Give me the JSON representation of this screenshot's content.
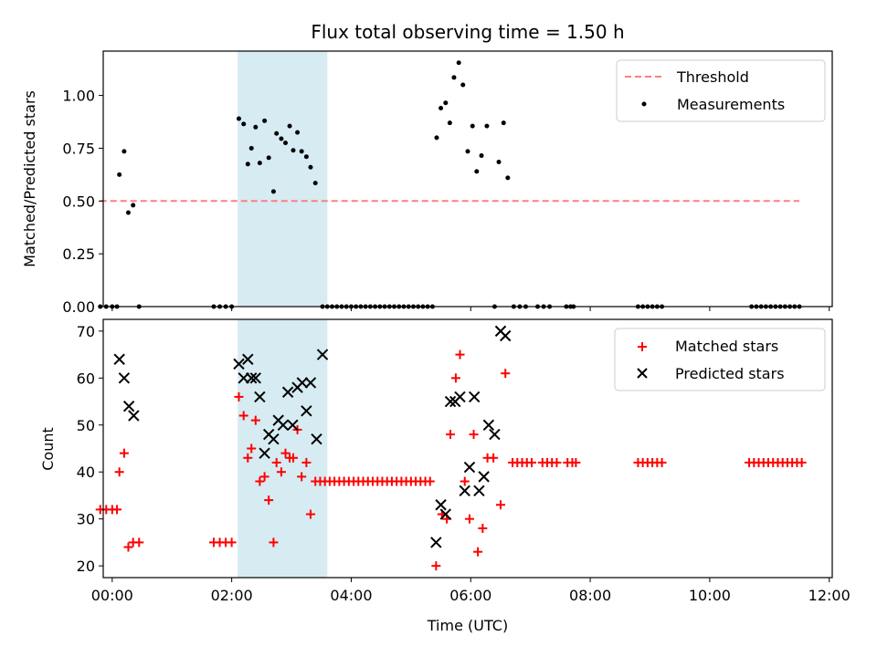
{
  "chart_data": [
    {
      "type": "scatter",
      "title": "Flux total observing time = 1.50 h",
      "xlabel": "",
      "ylabel": "Matched/Predicted stars",
      "xlim": [
        -0.15,
        12.05
      ],
      "ylim": [
        0,
        1.21
      ],
      "yticks": [
        0.0,
        0.25,
        0.5,
        0.75,
        1.0
      ],
      "ytick_labels": [
        "0.00",
        "0.25",
        "0.50",
        "0.75",
        "1.00"
      ],
      "xticks": [
        0,
        2,
        4,
        6,
        8,
        10,
        12
      ],
      "shaded_span": [
        2.1,
        3.6
      ],
      "shade_color": "#add8e6",
      "legend_position": "top-right",
      "threshold": {
        "name": "Threshold",
        "value": 0.5,
        "x_range": [
          -0.2,
          11.5
        ],
        "color": "#ff7f7f"
      },
      "series": [
        {
          "name": "Measurements",
          "marker": "dot",
          "color": "#000000",
          "points": [
            [
              -0.2,
              0.0
            ],
            [
              -0.1,
              0.0
            ],
            [
              0.0,
              0.0
            ],
            [
              0.08,
              0.0
            ],
            [
              0.12,
              0.625
            ],
            [
              0.2,
              0.735
            ],
            [
              0.27,
              0.445
            ],
            [
              0.35,
              0.48
            ],
            [
              0.45,
              0.0
            ],
            [
              1.7,
              0.0
            ],
            [
              1.8,
              0.0
            ],
            [
              1.9,
              0.0
            ],
            [
              2.0,
              0.0
            ],
            [
              2.12,
              0.89
            ],
            [
              2.2,
              0.865
            ],
            [
              2.27,
              0.675
            ],
            [
              2.33,
              0.75
            ],
            [
              2.4,
              0.85
            ],
            [
              2.47,
              0.68
            ],
            [
              2.55,
              0.88
            ],
            [
              2.62,
              0.705
            ],
            [
              2.7,
              0.545
            ],
            [
              2.75,
              0.82
            ],
            [
              2.83,
              0.795
            ],
            [
              2.9,
              0.775
            ],
            [
              2.97,
              0.855
            ],
            [
              3.03,
              0.74
            ],
            [
              3.1,
              0.825
            ],
            [
              3.17,
              0.735
            ],
            [
              3.25,
              0.71
            ],
            [
              3.32,
              0.66
            ],
            [
              3.4,
              0.585
            ],
            [
              3.52,
              0.0
            ],
            [
              3.6,
              0.0
            ],
            [
              3.68,
              0.0
            ],
            [
              3.76,
              0.0
            ],
            [
              3.84,
              0.0
            ],
            [
              3.92,
              0.0
            ],
            [
              4.0,
              0.0
            ],
            [
              4.08,
              0.0
            ],
            [
              4.16,
              0.0
            ],
            [
              4.24,
              0.0
            ],
            [
              4.32,
              0.0
            ],
            [
              4.4,
              0.0
            ],
            [
              4.48,
              0.0
            ],
            [
              4.56,
              0.0
            ],
            [
              4.64,
              0.0
            ],
            [
              4.72,
              0.0
            ],
            [
              4.8,
              0.0
            ],
            [
              4.88,
              0.0
            ],
            [
              4.96,
              0.0
            ],
            [
              5.04,
              0.0
            ],
            [
              5.12,
              0.0
            ],
            [
              5.2,
              0.0
            ],
            [
              5.28,
              0.0
            ],
            [
              5.36,
              0.0
            ],
            [
              5.43,
              0.8
            ],
            [
              5.5,
              0.94
            ],
            [
              5.58,
              0.965
            ],
            [
              5.65,
              0.87
            ],
            [
              5.72,
              1.085
            ],
            [
              5.8,
              1.155
            ],
            [
              5.87,
              1.05
            ],
            [
              5.95,
              0.735
            ],
            [
              6.03,
              0.855
            ],
            [
              6.1,
              0.64
            ],
            [
              6.18,
              0.715
            ],
            [
              6.27,
              0.855
            ],
            [
              6.4,
              0.0
            ],
            [
              6.47,
              0.685
            ],
            [
              6.55,
              0.87
            ],
            [
              6.62,
              0.61
            ],
            [
              6.72,
              0.0
            ],
            [
              6.82,
              0.0
            ],
            [
              6.92,
              0.0
            ],
            [
              7.12,
              0.0
            ],
            [
              7.22,
              0.0
            ],
            [
              7.32,
              0.0
            ],
            [
              7.6,
              0.0
            ],
            [
              7.67,
              0.0
            ],
            [
              7.72,
              0.0
            ],
            [
              8.8,
              0.0
            ],
            [
              8.88,
              0.0
            ],
            [
              8.96,
              0.0
            ],
            [
              9.04,
              0.0
            ],
            [
              9.12,
              0.0
            ],
            [
              9.2,
              0.0
            ],
            [
              10.7,
              0.0
            ],
            [
              10.78,
              0.0
            ],
            [
              10.86,
              0.0
            ],
            [
              10.94,
              0.0
            ],
            [
              11.02,
              0.0
            ],
            [
              11.1,
              0.0
            ],
            [
              11.18,
              0.0
            ],
            [
              11.26,
              0.0
            ],
            [
              11.34,
              0.0
            ],
            [
              11.42,
              0.0
            ],
            [
              11.5,
              0.0
            ]
          ]
        }
      ]
    },
    {
      "type": "scatter",
      "title": "",
      "xlabel": "Time (UTC)",
      "ylabel": "Count",
      "xlim": [
        -0.15,
        12.05
      ],
      "ylim": [
        17.5,
        72.5
      ],
      "yticks": [
        20,
        30,
        40,
        50,
        60,
        70
      ],
      "ytick_labels": [
        "20",
        "30",
        "40",
        "50",
        "60",
        "70"
      ],
      "xticks": [
        0,
        2,
        4,
        6,
        8,
        10,
        12
      ],
      "xtick_labels": [
        "00:00",
        "02:00",
        "04:00",
        "06:00",
        "08:00",
        "10:00",
        "12:00"
      ],
      "shaded_span": [
        2.1,
        3.6
      ],
      "shade_color": "#add8e6",
      "legend_position": "top-right",
      "series": [
        {
          "name": "Matched stars",
          "marker": "plus",
          "color": "#ff0000",
          "points": [
            [
              -0.2,
              32
            ],
            [
              -0.1,
              32
            ],
            [
              0.0,
              32
            ],
            [
              0.08,
              32
            ],
            [
              0.12,
              40
            ],
            [
              0.2,
              44
            ],
            [
              0.27,
              24
            ],
            [
              0.35,
              25
            ],
            [
              0.45,
              25
            ],
            [
              1.7,
              25
            ],
            [
              1.8,
              25
            ],
            [
              1.9,
              25
            ],
            [
              2.0,
              25
            ],
            [
              2.12,
              56
            ],
            [
              2.2,
              52
            ],
            [
              2.27,
              43
            ],
            [
              2.33,
              45
            ],
            [
              2.4,
              51
            ],
            [
              2.47,
              38
            ],
            [
              2.55,
              39
            ],
            [
              2.62,
              34
            ],
            [
              2.7,
              25
            ],
            [
              2.75,
              42
            ],
            [
              2.83,
              40
            ],
            [
              2.9,
              44
            ],
            [
              2.97,
              43
            ],
            [
              3.03,
              43
            ],
            [
              3.1,
              49
            ],
            [
              3.17,
              39
            ],
            [
              3.25,
              42
            ],
            [
              3.32,
              31
            ],
            [
              3.4,
              38
            ],
            [
              3.48,
              38
            ],
            [
              3.56,
              38
            ],
            [
              3.64,
              38
            ],
            [
              3.72,
              38
            ],
            [
              3.8,
              38
            ],
            [
              3.88,
              38
            ],
            [
              3.96,
              38
            ],
            [
              4.04,
              38
            ],
            [
              4.12,
              38
            ],
            [
              4.2,
              38
            ],
            [
              4.28,
              38
            ],
            [
              4.36,
              38
            ],
            [
              4.44,
              38
            ],
            [
              4.52,
              38
            ],
            [
              4.6,
              38
            ],
            [
              4.68,
              38
            ],
            [
              4.76,
              38
            ],
            [
              4.84,
              38
            ],
            [
              4.92,
              38
            ],
            [
              5.0,
              38
            ],
            [
              5.08,
              38
            ],
            [
              5.16,
              38
            ],
            [
              5.24,
              38
            ],
            [
              5.32,
              38
            ],
            [
              5.42,
              20
            ],
            [
              5.52,
              31
            ],
            [
              5.6,
              30
            ],
            [
              5.66,
              48
            ],
            [
              5.75,
              60
            ],
            [
              5.82,
              65
            ],
            [
              5.9,
              38
            ],
            [
              5.98,
              30
            ],
            [
              6.05,
              48
            ],
            [
              6.12,
              23
            ],
            [
              6.2,
              28
            ],
            [
              6.28,
              43
            ],
            [
              6.38,
              43
            ],
            [
              6.5,
              33
            ],
            [
              6.58,
              61
            ],
            [
              6.7,
              42
            ],
            [
              6.78,
              42
            ],
            [
              6.86,
              42
            ],
            [
              6.94,
              42
            ],
            [
              7.02,
              42
            ],
            [
              7.2,
              42
            ],
            [
              7.28,
              42
            ],
            [
              7.36,
              42
            ],
            [
              7.44,
              42
            ],
            [
              7.62,
              42
            ],
            [
              7.7,
              42
            ],
            [
              7.76,
              42
            ],
            [
              8.8,
              42
            ],
            [
              8.88,
              42
            ],
            [
              8.96,
              42
            ],
            [
              9.04,
              42
            ],
            [
              9.12,
              42
            ],
            [
              9.2,
              42
            ],
            [
              10.66,
              42
            ],
            [
              10.74,
              42
            ],
            [
              10.82,
              42
            ],
            [
              10.9,
              42
            ],
            [
              10.98,
              42
            ],
            [
              11.06,
              42
            ],
            [
              11.14,
              42
            ],
            [
              11.22,
              42
            ],
            [
              11.3,
              42
            ],
            [
              11.38,
              42
            ],
            [
              11.46,
              42
            ],
            [
              11.54,
              42
            ]
          ]
        },
        {
          "name": "Predicted stars",
          "marker": "x",
          "color": "#000000",
          "points": [
            [
              0.12,
              64
            ],
            [
              0.2,
              60
            ],
            [
              0.28,
              54
            ],
            [
              0.36,
              52
            ],
            [
              2.12,
              63
            ],
            [
              2.2,
              60
            ],
            [
              2.27,
              64
            ],
            [
              2.33,
              60
            ],
            [
              2.4,
              60
            ],
            [
              2.47,
              56
            ],
            [
              2.55,
              44
            ],
            [
              2.62,
              48
            ],
            [
              2.7,
              47
            ],
            [
              2.78,
              51
            ],
            [
              2.86,
              50
            ],
            [
              2.94,
              57
            ],
            [
              3.02,
              50
            ],
            [
              3.1,
              58
            ],
            [
              3.18,
              59
            ],
            [
              3.25,
              53
            ],
            [
              3.32,
              59
            ],
            [
              3.42,
              47
            ],
            [
              3.52,
              65
            ],
            [
              5.42,
              25
            ],
            [
              5.5,
              33
            ],
            [
              5.58,
              31
            ],
            [
              5.66,
              55
            ],
            [
              5.74,
              55
            ],
            [
              5.82,
              56
            ],
            [
              5.9,
              36
            ],
            [
              5.98,
              41
            ],
            [
              6.06,
              56
            ],
            [
              6.14,
              36
            ],
            [
              6.22,
              39
            ],
            [
              6.3,
              50
            ],
            [
              6.4,
              48
            ],
            [
              6.5,
              70
            ],
            [
              6.58,
              69
            ]
          ]
        }
      ]
    }
  ]
}
